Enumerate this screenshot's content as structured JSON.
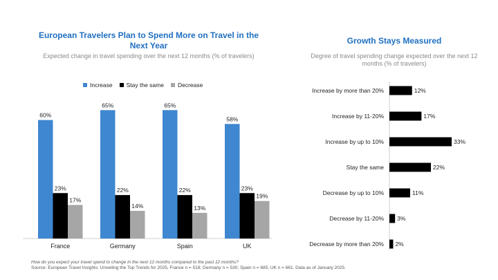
{
  "chart_data": [
    {
      "type": "bar",
      "title": "European Travelers Plan to Spend More on Travel in the Next Year",
      "subtitle": "Expected change in travel spending over the next 12 months (% of travelers)",
      "categories": [
        "France",
        "Germany",
        "Spain",
        "UK"
      ],
      "series": [
        {
          "name": "Increase",
          "values": [
            60,
            65,
            65,
            58
          ],
          "color": "#3f87d0"
        },
        {
          "name": "Stay the same",
          "values": [
            23,
            22,
            22,
            23
          ],
          "color": "#000000"
        },
        {
          "name": "Decrease",
          "values": [
            17,
            14,
            13,
            19
          ],
          "color": "#a6a6a6"
        }
      ],
      "value_suffix": "%",
      "ylim": [
        0,
        70
      ],
      "legend": "top",
      "grid": false
    },
    {
      "type": "bar",
      "orientation": "horizontal",
      "title": "Growth Stays Measured",
      "subtitle": "Degree of travel spending change expected over the next 12 months (% of travelers)",
      "categories": [
        "Increase by more than 20%",
        "Increase by 11-20%",
        "Increase by up to 10%",
        "Stay the same",
        "Decrease by up to 10%",
        "Decrease by 11-20%",
        "Decrease by more than 20%"
      ],
      "values": [
        12,
        17,
        33,
        22,
        11,
        3,
        2
      ],
      "value_suffix": "%",
      "color": "#000000",
      "xlim": [
        0,
        35
      ],
      "grid": false
    }
  ],
  "footer": {
    "question": "How do you expect your travel spend to change in the next 12 months compared to the past 12 months?",
    "source": "Source: European Travel Insights: Unveiling the Top Trends for 2025, France n = 518; Germany n = 530; Spain n = 685; UK n = 661. Data as of January 2025."
  }
}
